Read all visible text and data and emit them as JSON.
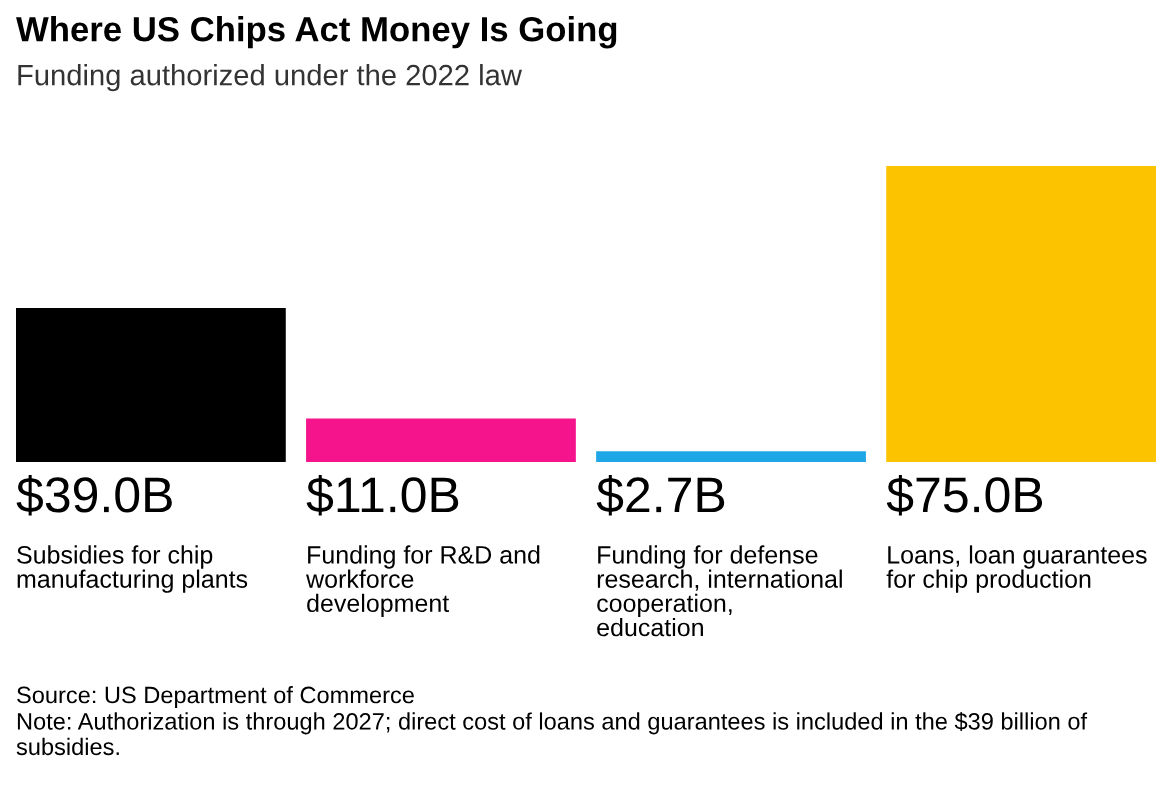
{
  "chart_data": {
    "type": "bar",
    "title": "Where US Chips Act Money Is Going",
    "subtitle": "Funding authorized under the 2022 law",
    "categories": [
      "Subsidies for chip\nmanufacturing plants",
      "Funding for R&D and\nworkforce\ndevelopment",
      "Funding for defense\nresearch, international\ncooperation,\neducation",
      "Loans, loan guarantees\nfor chip production"
    ],
    "values": [
      39.0,
      11.0,
      2.7,
      75.0
    ],
    "colors": [
      "#000000",
      "#f5148c",
      "#1ea6e6",
      "#fbc300"
    ],
    "value_labels": [
      "$39.0B",
      "$11.0B",
      "$2.7B",
      "$75.0B"
    ],
    "annotations": [
      "Source: US Department of Commerce",
      "Note: Authorization is through 2027; direct cost of loans and guarantees is included in the $39 billion of subsidies."
    ]
  }
}
